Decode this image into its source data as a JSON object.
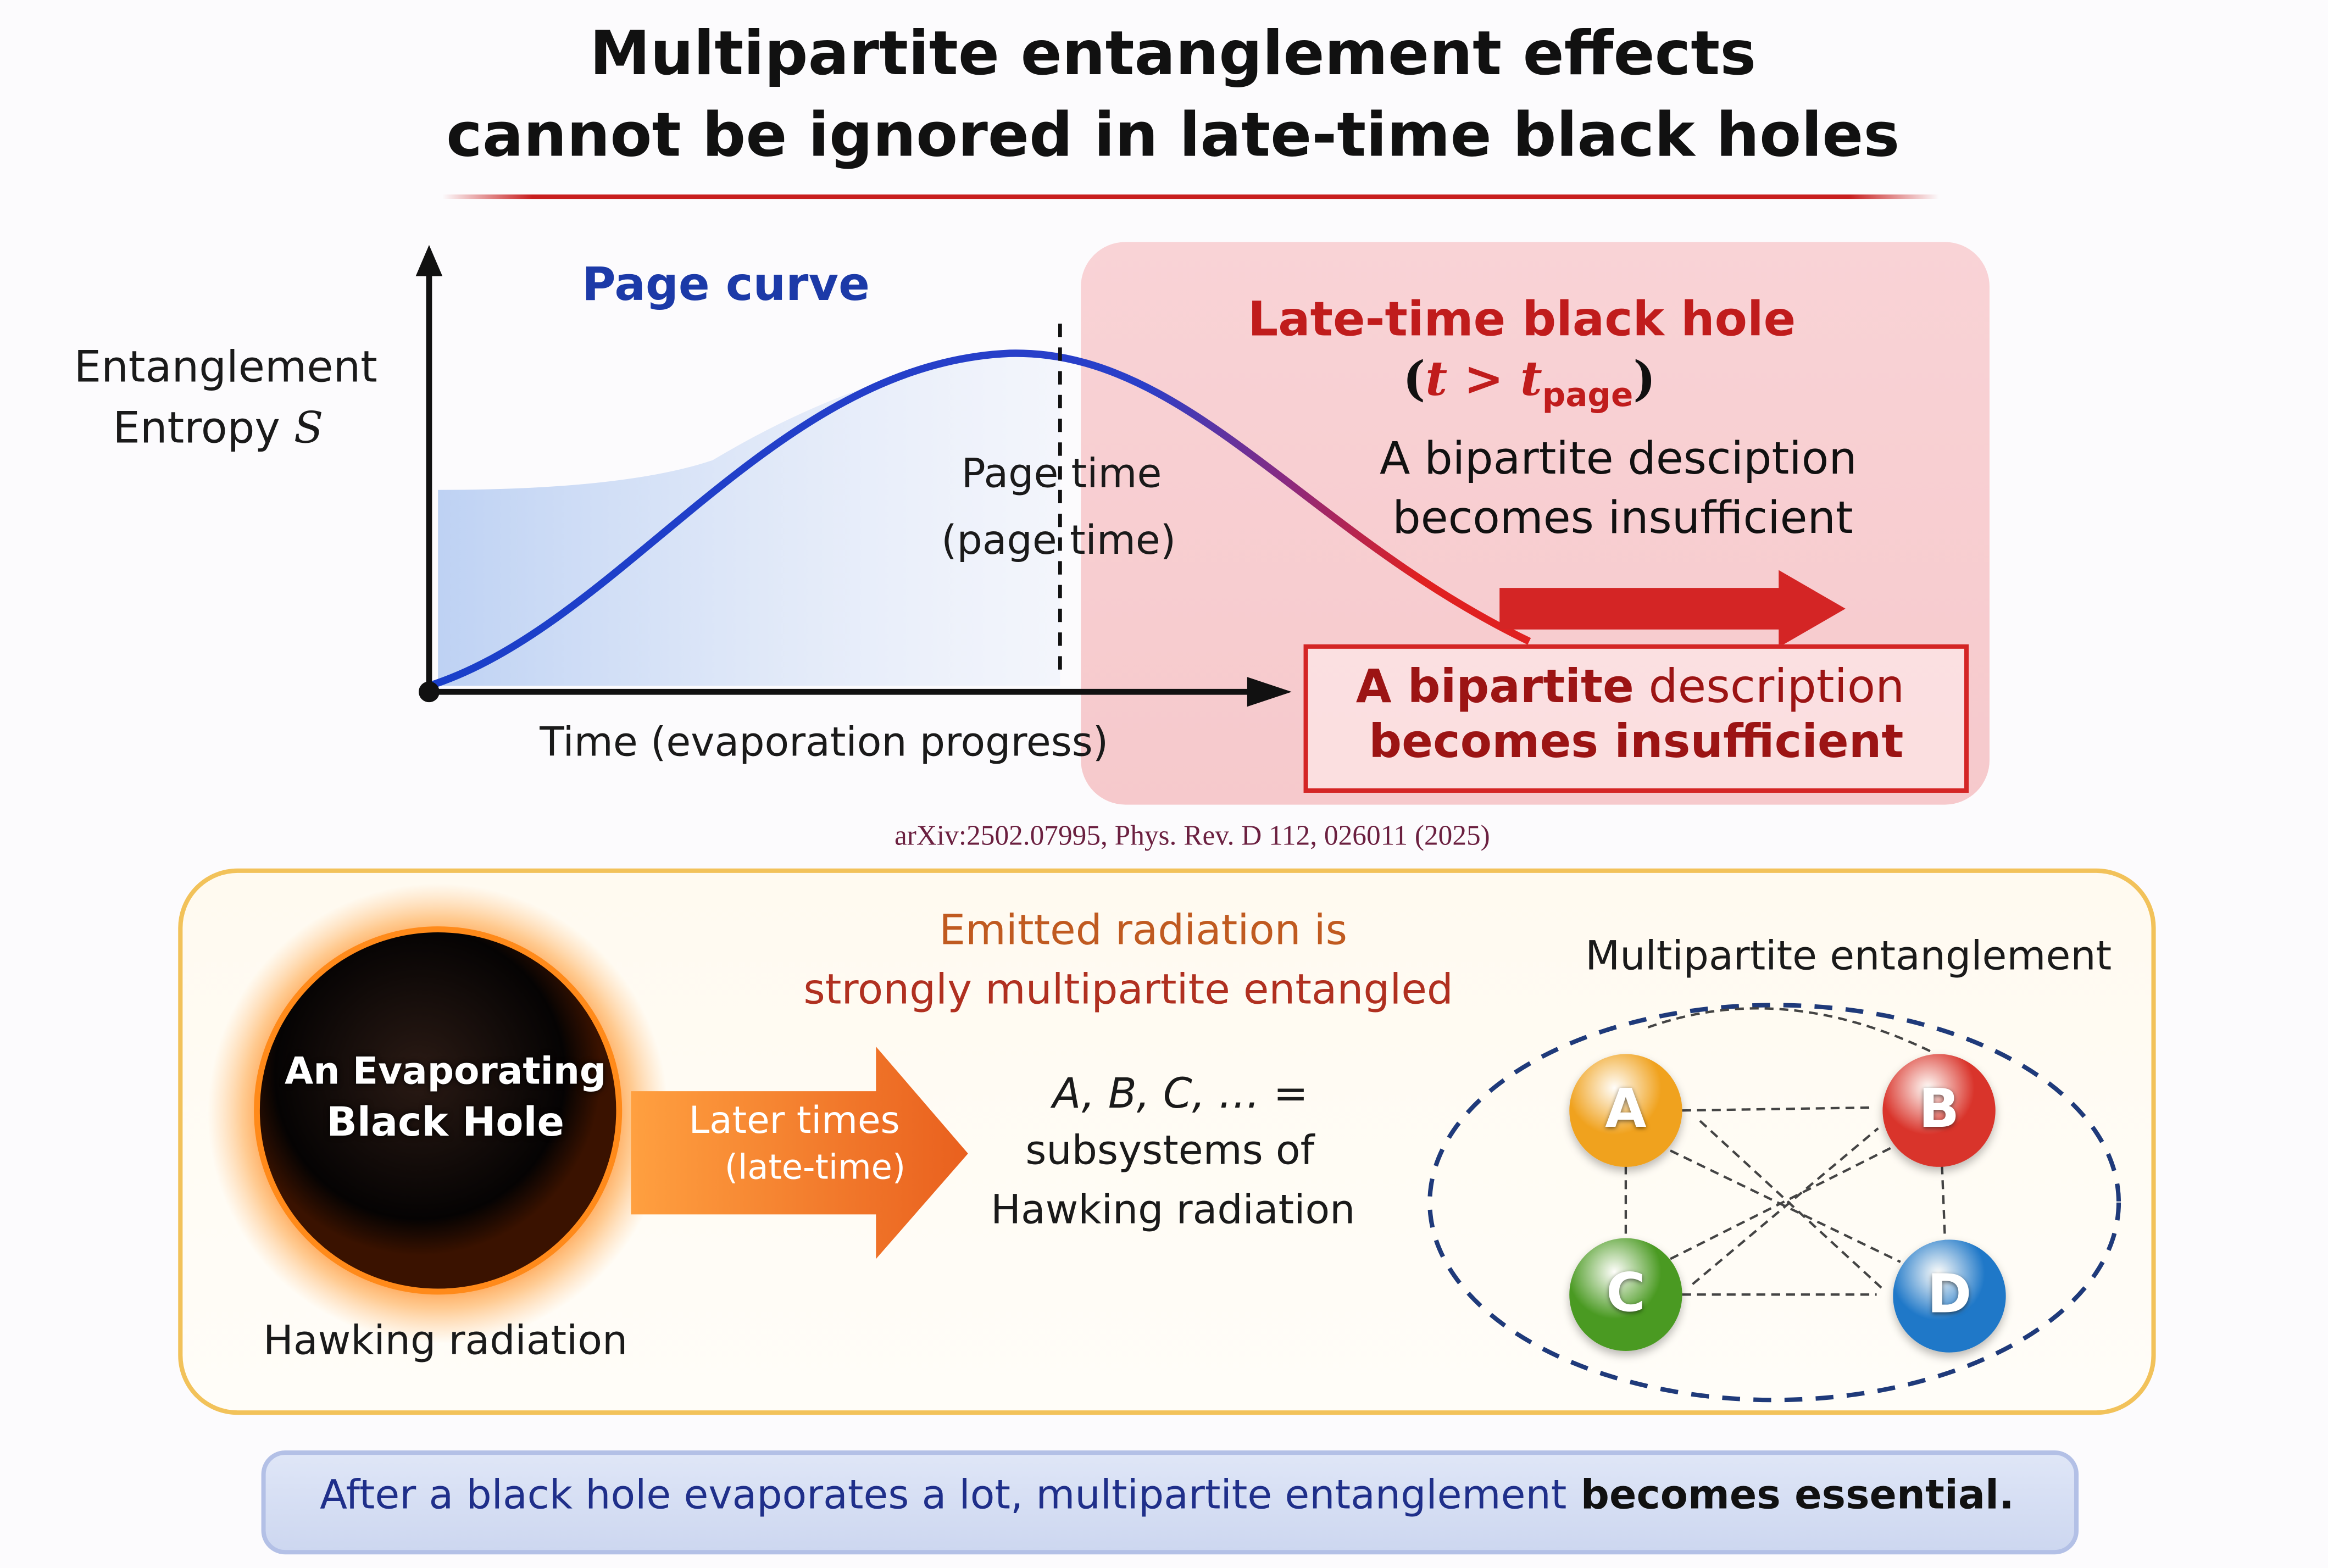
{
  "title": {
    "line1": "Multipartite entanglement effects",
    "line2": "cannot be ignored in late-time black holes"
  },
  "graph": {
    "y_label_1": "Entanglement",
    "y_label_2": "Entropy",
    "y_label_var": "S",
    "curve_label": "Page curve",
    "page_time_1": "Page time",
    "page_time_2": "(page time)",
    "x_label": "Time (evaporation progress)"
  },
  "late": {
    "title": "Late-time black hole",
    "cond_open": "(",
    "cond_t": "t",
    "cond_gt": " > ",
    "cond_tp": "t",
    "cond_sub": "page",
    "cond_close": ")",
    "desc_1": "A bipartite desciption",
    "desc_2": "becomes insufficient",
    "box_1a": "A bipartite",
    "box_1b": " description",
    "box_2": "becomes insufficient"
  },
  "citation": "arXiv:2502.07995, Phys. Rev. D 112, 026011 (2025)",
  "lower": {
    "bh_1": "An Evaporating",
    "bh_2": "Black Hole",
    "hawking": "Hawking radiation",
    "arrow_1": "Later times",
    "arrow_2": "(late-time)",
    "emitted_1": "Emitted radiation is",
    "emitted_2": "strongly multipartite entangled",
    "subs_1": "A, B, C, … =",
    "subs_2": "subsystems of",
    "subs_3": "Hawking radiation",
    "multi_title": "Multipartite entanglement",
    "nodes": [
      {
        "label": "A",
        "color": "#f0a21e"
      },
      {
        "label": "B",
        "color": "#d9342b"
      },
      {
        "label": "C",
        "color": "#4a9a22"
      },
      {
        "label": "D",
        "color": "#1f78c8"
      }
    ]
  },
  "banner": {
    "part1": "After a black hole evaporates a lot, multipartite entanglement",
    "part2": " becomes essential."
  }
}
